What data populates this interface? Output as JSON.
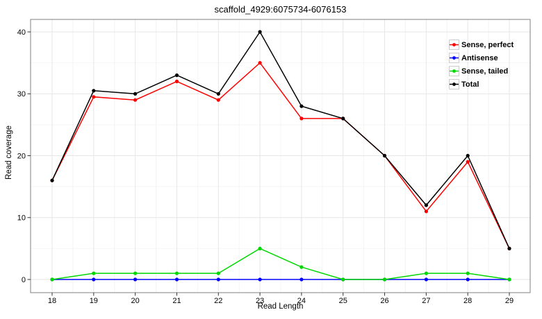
{
  "chart_data": {
    "type": "line",
    "title": "scaffold_4929:6075734-6076153",
    "xlabel": "Read Length",
    "ylabel": "Read coverage",
    "x": [
      18,
      19,
      20,
      21,
      22,
      23,
      24,
      25,
      26,
      27,
      28,
      29
    ],
    "xlim": [
      18,
      29
    ],
    "ylim": [
      0,
      40
    ],
    "yticks": [
      0,
      10,
      20,
      30,
      40
    ],
    "grid": true,
    "legend_position": "top-right-inside",
    "series": [
      {
        "name": "Sense, perfect",
        "color": "#ff0000",
        "values": [
          16,
          29.5,
          29,
          32,
          29,
          35,
          26,
          26,
          20,
          11,
          19,
          5
        ]
      },
      {
        "name": "Antisense",
        "color": "#0000ff",
        "values": [
          0,
          0,
          0,
          0,
          0,
          0,
          0,
          0,
          0,
          0,
          0,
          0
        ]
      },
      {
        "name": "Sense, tailed",
        "color": "#00d800",
        "values": [
          0,
          1,
          1,
          1,
          1,
          5,
          2,
          0,
          0,
          1,
          1,
          0
        ]
      },
      {
        "name": "Total",
        "color": "#000000",
        "values": [
          16,
          30.5,
          30,
          33,
          30,
          40,
          28,
          26,
          20,
          12,
          20,
          5
        ]
      }
    ],
    "colors": {
      "panel_border": "#808080",
      "grid_major": "#e6e6e6",
      "grid_minor": "#f4f4f4",
      "tick_mark": "#333333",
      "tick_label": "#000000"
    }
  }
}
